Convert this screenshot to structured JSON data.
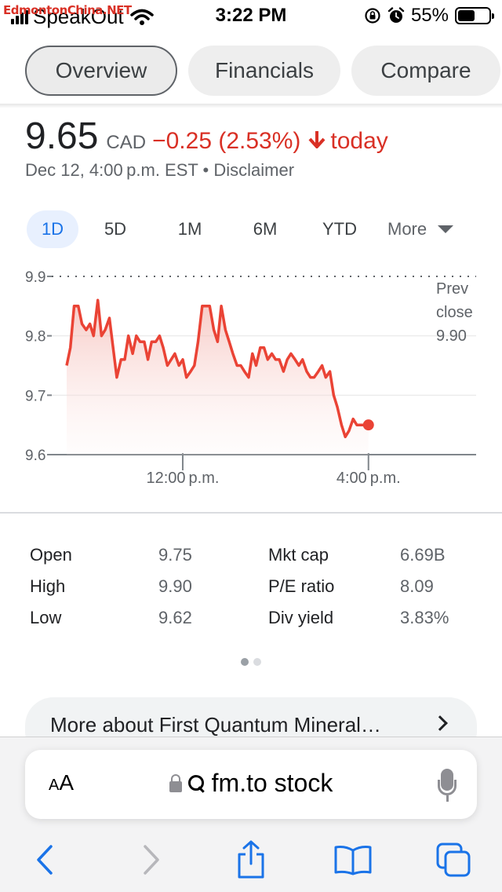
{
  "status_bar": {
    "watermark": "EdmontonChina.NET",
    "carrier": "SpeakOut",
    "time": "3:22 PM",
    "battery_percent": "55%",
    "battery_level": 0.55,
    "icons": [
      "signal-icon",
      "wifi-icon",
      "orientation-lock-icon",
      "alarm-icon",
      "battery-icon"
    ]
  },
  "tabs": [
    {
      "label": "Overview",
      "active": true
    },
    {
      "label": "Financials",
      "active": false
    },
    {
      "label": "Compare",
      "active": false
    }
  ],
  "quote": {
    "price": "9.65",
    "currency": "CAD",
    "change": "−0.25 (2.53%)",
    "direction_icon": "arrow-down-icon",
    "period": "today",
    "timestamp": "Dec 12, 4:00 p.m. EST • Disclaimer"
  },
  "ranges": {
    "items": [
      "1D",
      "5D",
      "1M",
      "6M",
      "YTD"
    ],
    "active": "1D",
    "more_label": "More"
  },
  "chart_data": {
    "type": "area",
    "y_ticks": [
      "9.9",
      "9.8",
      "9.7",
      "9.6"
    ],
    "x_ticks": [
      "12:00 p.m.",
      "4:00 p.m."
    ],
    "ylim": [
      9.6,
      9.9
    ],
    "prev_close_label": [
      "Prev",
      "close",
      "9.90"
    ],
    "prev_close": 9.9,
    "line_color": "#ea4335",
    "fill_color": "#fce8e6",
    "x_range_hours": [
      9.5,
      16.0
    ],
    "y_axis_extends_to": 18.0,
    "series": [
      {
        "x": [
          9.5,
          9.58,
          9.66,
          9.75,
          9.83,
          9.92,
          10.0,
          10.08,
          10.17,
          10.25,
          10.33,
          10.42,
          10.5,
          10.58,
          10.67,
          10.75,
          10.83,
          10.92,
          11.0,
          11.08,
          11.17,
          11.25,
          11.33,
          11.42,
          11.5,
          11.58,
          11.67,
          11.75,
          11.83,
          11.92,
          12.0,
          12.08,
          12.17,
          12.25,
          12.33,
          12.42,
          12.5,
          12.58,
          12.67,
          12.75,
          12.83,
          12.92,
          13.0,
          13.08,
          13.17,
          13.25,
          13.33,
          13.42,
          13.5,
          13.58,
          13.67,
          13.75,
          13.83,
          13.92,
          14.0,
          14.08,
          14.17,
          14.25,
          14.33,
          14.42,
          14.5,
          14.58,
          14.67,
          14.75,
          14.83,
          14.92,
          15.0,
          15.08,
          15.17,
          15.25,
          15.33,
          15.42,
          15.5,
          15.58,
          15.67,
          15.75,
          15.83,
          15.92,
          16.0
        ],
        "y": [
          9.75,
          9.78,
          9.85,
          9.85,
          9.82,
          9.81,
          9.82,
          9.8,
          9.86,
          9.8,
          9.81,
          9.83,
          9.78,
          9.73,
          9.76,
          9.76,
          9.8,
          9.77,
          9.8,
          9.79,
          9.79,
          9.76,
          9.79,
          9.79,
          9.8,
          9.78,
          9.75,
          9.76,
          9.77,
          9.75,
          9.76,
          9.73,
          9.74,
          9.75,
          9.79,
          9.85,
          9.85,
          9.85,
          9.81,
          9.79,
          9.85,
          9.81,
          9.79,
          9.77,
          9.75,
          9.75,
          9.74,
          9.73,
          9.77,
          9.75,
          9.78,
          9.78,
          9.76,
          9.77,
          9.76,
          9.76,
          9.74,
          9.76,
          9.77,
          9.76,
          9.75,
          9.76,
          9.74,
          9.73,
          9.73,
          9.74,
          9.75,
          9.73,
          9.74,
          9.7,
          9.68,
          9.65,
          9.63,
          9.64,
          9.66,
          9.65,
          9.65,
          9.65,
          9.65
        ]
      }
    ],
    "last_value": 9.65
  },
  "stats": [
    {
      "label1": "Open",
      "value1": "9.75",
      "label2": "Mkt cap",
      "value2": "6.69B"
    },
    {
      "label1": "High",
      "value1": "9.90",
      "label2": "P/E ratio",
      "value2": "8.09"
    },
    {
      "label1": "Low",
      "value1": "9.62",
      "label2": "Div yield",
      "value2": "3.83%"
    }
  ],
  "pager": {
    "count": 2,
    "active": 0
  },
  "more_about": {
    "label": "More about First Quantum Mineral…"
  },
  "safari": {
    "aa_small": "A",
    "aa_large": "A",
    "url": "fm.to stock",
    "toolbar_icons": [
      "back-icon",
      "forward-icon",
      "share-icon",
      "bookmarks-icon",
      "tabs-icon"
    ]
  }
}
